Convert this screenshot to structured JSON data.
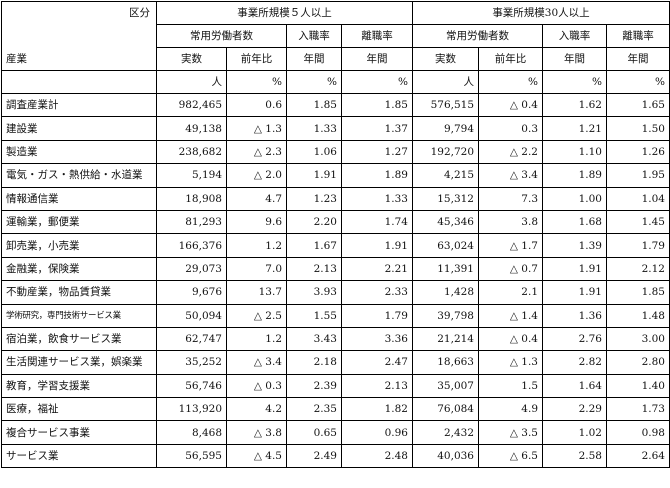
{
  "header": {
    "kubun": "区分",
    "sangyo": "産業",
    "group5": "事業所規模５人以上",
    "group30": "事業所規模30人以上",
    "joyo": "常用労働者数",
    "nyushoku": "入職率",
    "rishoku": "離職率",
    "jissu": "実数",
    "zennenhi": "前年比",
    "nenkan": "年間"
  },
  "units": {
    "nin": "人",
    "pct": "%"
  },
  "rows": [
    {
      "name": "調査産業計",
      "small": false,
      "v5": "982,465",
      "y5": "0.6",
      "n5": "1.85",
      "r5": "1.85",
      "v30": "576,515",
      "y30": "△ 0.4",
      "n30": "1.62",
      "r30": "1.65"
    },
    {
      "name": "建設業",
      "small": false,
      "v5": "49,138",
      "y5": "△ 1.3",
      "n5": "1.33",
      "r5": "1.37",
      "v30": "9,794",
      "y30": "0.3",
      "n30": "1.21",
      "r30": "1.50"
    },
    {
      "name": "製造業",
      "small": false,
      "v5": "238,682",
      "y5": "△ 2.3",
      "n5": "1.06",
      "r5": "1.27",
      "v30": "192,720",
      "y30": "△ 2.2",
      "n30": "1.10",
      "r30": "1.26"
    },
    {
      "name": "電気・ガス・熱供給・水道業",
      "small": false,
      "v5": "5,194",
      "y5": "△ 2.0",
      "n5": "1.91",
      "r5": "1.89",
      "v30": "4,215",
      "y30": "△ 3.4",
      "n30": "1.89",
      "r30": "1.95"
    },
    {
      "name": "情報通信業",
      "small": false,
      "v5": "18,908",
      "y5": "4.7",
      "n5": "1.23",
      "r5": "1.33",
      "v30": "15,312",
      "y30": "7.3",
      "n30": "1.00",
      "r30": "1.04"
    },
    {
      "name": "運輸業，郵便業",
      "small": false,
      "v5": "81,293",
      "y5": "9.6",
      "n5": "2.20",
      "r5": "1.74",
      "v30": "45,346",
      "y30": "3.8",
      "n30": "1.68",
      "r30": "1.45"
    },
    {
      "name": "卸売業，小売業",
      "small": false,
      "v5": "166,376",
      "y5": "1.2",
      "n5": "1.67",
      "r5": "1.91",
      "v30": "63,024",
      "y30": "△ 1.7",
      "n30": "1.39",
      "r30": "1.79"
    },
    {
      "name": "金融業，保険業",
      "small": false,
      "v5": "29,073",
      "y5": "7.0",
      "n5": "2.13",
      "r5": "2.21",
      "v30": "11,391",
      "y30": "△ 0.7",
      "n30": "1.91",
      "r30": "2.12"
    },
    {
      "name": "不動産業，物品賃貸業",
      "small": false,
      "v5": "9,676",
      "y5": "13.7",
      "n5": "3.93",
      "r5": "2.33",
      "v30": "1,428",
      "y30": "2.1",
      "n30": "1.91",
      "r30": "1.85"
    },
    {
      "name": "学術研究，専門技術サービス業",
      "small": true,
      "v5": "50,094",
      "y5": "△ 2.5",
      "n5": "1.55",
      "r5": "1.79",
      "v30": "39,798",
      "y30": "△ 1.4",
      "n30": "1.36",
      "r30": "1.48"
    },
    {
      "name": "宿泊業，飲食サービス業",
      "small": false,
      "v5": "62,747",
      "y5": "1.2",
      "n5": "3.43",
      "r5": "3.36",
      "v30": "21,214",
      "y30": "△ 0.4",
      "n30": "2.76",
      "r30": "3.00"
    },
    {
      "name": "生活関連サービス業，娯楽業",
      "small": false,
      "v5": "35,252",
      "y5": "△ 3.4",
      "n5": "2.18",
      "r5": "2.47",
      "v30": "18,663",
      "y30": "△ 1.3",
      "n30": "2.82",
      "r30": "2.80"
    },
    {
      "name": "教育，学習支援業",
      "small": false,
      "v5": "56,746",
      "y5": "△ 0.3",
      "n5": "2.39",
      "r5": "2.13",
      "v30": "35,007",
      "y30": "1.5",
      "n30": "1.64",
      "r30": "1.40"
    },
    {
      "name": "医療，福祉",
      "small": false,
      "v5": "113,920",
      "y5": "4.2",
      "n5": "2.35",
      "r5": "1.82",
      "v30": "76,084",
      "y30": "4.9",
      "n30": "2.29",
      "r30": "1.73"
    },
    {
      "name": "複合サービス事業",
      "small": false,
      "v5": "8,468",
      "y5": "△ 3.8",
      "n5": "0.65",
      "r5": "0.96",
      "v30": "2,432",
      "y30": "△ 3.5",
      "n30": "1.02",
      "r30": "0.98"
    },
    {
      "name": "サービス業",
      "small": false,
      "v5": "56,595",
      "y5": "△ 4.5",
      "n5": "2.49",
      "r5": "2.48",
      "v30": "40,036",
      "y30": "△ 6.5",
      "n30": "2.58",
      "r30": "2.64"
    }
  ]
}
